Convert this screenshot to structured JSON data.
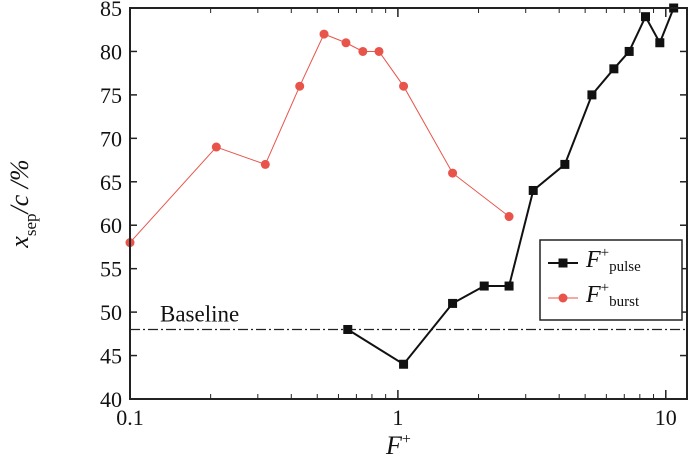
{
  "chart_data": {
    "type": "line",
    "x_scale": "log",
    "xlim": [
      0.1,
      12
    ],
    "ylim": [
      40,
      85
    ],
    "x_ticks": [
      {
        "value": 0.1,
        "label": "0.1"
      },
      {
        "value": 1,
        "label": "1"
      },
      {
        "value": 10,
        "label": "10"
      }
    ],
    "y_ticks": [
      {
        "value": 40,
        "label": "40"
      },
      {
        "value": 45,
        "label": "45"
      },
      {
        "value": 50,
        "label": "50"
      },
      {
        "value": 55,
        "label": "55"
      },
      {
        "value": 60,
        "label": "60"
      },
      {
        "value": 65,
        "label": "65"
      },
      {
        "value": 70,
        "label": "70"
      },
      {
        "value": 75,
        "label": "75"
      },
      {
        "value": 80,
        "label": "80"
      },
      {
        "value": 85,
        "label": "85"
      }
    ],
    "xlabel": "F",
    "xlabel_sup": "+",
    "ylabel": {
      "x": "x",
      "sub": "sep",
      "rest": "/c /%"
    },
    "baseline": {
      "label": "Baseline",
      "value": 48
    },
    "legend_position": "right",
    "series": [
      {
        "name": "F",
        "name_sup": "+",
        "name_sub": "pulse",
        "color": "#111111",
        "marker": "square",
        "points": [
          [
            0.65,
            48
          ],
          [
            1.05,
            44
          ],
          [
            1.6,
            51
          ],
          [
            2.1,
            53
          ],
          [
            2.6,
            53
          ],
          [
            3.2,
            64
          ],
          [
            4.2,
            67
          ],
          [
            5.3,
            75
          ],
          [
            6.4,
            78
          ],
          [
            7.3,
            80
          ],
          [
            8.4,
            84
          ],
          [
            9.5,
            81
          ],
          [
            10.7,
            85
          ]
        ]
      },
      {
        "name": "F",
        "name_sup": "+",
        "name_sub": "burst",
        "color": "#e8534a",
        "marker": "circle",
        "points": [
          [
            0.1,
            58
          ],
          [
            0.21,
            69
          ],
          [
            0.32,
            67
          ],
          [
            0.43,
            76
          ],
          [
            0.53,
            82
          ],
          [
            0.64,
            81
          ],
          [
            0.74,
            80
          ],
          [
            0.85,
            80
          ],
          [
            1.05,
            76
          ],
          [
            1.6,
            66
          ],
          [
            2.6,
            61
          ]
        ]
      }
    ]
  }
}
